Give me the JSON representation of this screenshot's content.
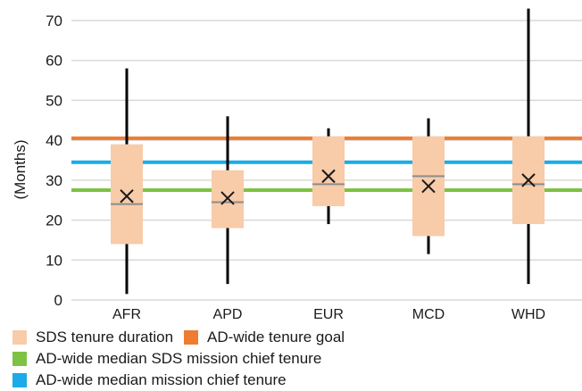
{
  "chart_data": {
    "type": "box",
    "ylabel": "(Months)",
    "ylim": [
      0,
      70
    ],
    "y_ticks": [
      0,
      10,
      20,
      30,
      40,
      50,
      60,
      70
    ],
    "grid": true,
    "categories": [
      "AFR",
      "APD",
      "EUR",
      "MCD",
      "WHD"
    ],
    "series": [
      {
        "name": "SDS tenure duration",
        "color": "#f8cba9",
        "boxes": [
          {
            "category": "AFR",
            "min": 1.5,
            "q1": 14,
            "median": 24,
            "mean": 26,
            "q3": 39,
            "max": 58
          },
          {
            "category": "APD",
            "min": 4,
            "q1": 18,
            "median": 24.5,
            "mean": 25.5,
            "q3": 32.5,
            "max": 46
          },
          {
            "category": "EUR",
            "min": 19,
            "q1": 23.5,
            "median": 29,
            "mean": 31,
            "q3": 41,
            "max": 43
          },
          {
            "category": "MCD",
            "min": 11.5,
            "q1": 16,
            "median": 31,
            "mean": 28.5,
            "q3": 41,
            "max": 45.5
          },
          {
            "category": "WHD",
            "min": 4,
            "q1": 19,
            "median": 29,
            "mean": 30,
            "q3": 41,
            "max": 73
          }
        ]
      }
    ],
    "reference_lines": [
      {
        "name": "AD-wide tenure goal",
        "value": 40.5,
        "color": "#ee7d31"
      },
      {
        "name": "AD-wide median mission chief tenure",
        "value": 34.5,
        "color": "#1aabe8"
      },
      {
        "name": "AD-wide median SDS mission chief tenure",
        "value": 27.5,
        "color": "#7dc242"
      }
    ],
    "legend": {
      "placement": "bottom",
      "rows": [
        [
          "SDS tenure duration",
          "AD-wide tenure goal"
        ],
        [
          "AD-wide median SDS mission chief tenure"
        ],
        [
          "AD-wide median mission chief tenure"
        ]
      ]
    },
    "colors": {
      "box": "#f8cba9",
      "whisker": "#000000",
      "median": "#8c8c8c",
      "grid": "#d9d9d9",
      "goal": "#ee7d31",
      "median_mc": "#1aabe8",
      "median_sds_mc": "#7dc242"
    }
  }
}
